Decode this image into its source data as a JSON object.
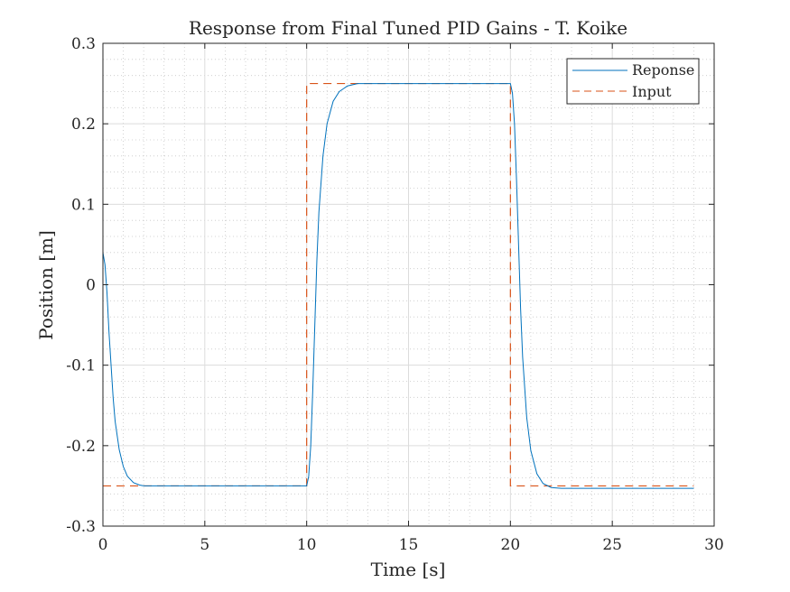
{
  "chart_data": {
    "type": "line",
    "title": "Response from Final Tuned PID Gains - T. Koike",
    "xlabel": "Time [s]",
    "ylabel": "Position [m]",
    "xlim": [
      0,
      30
    ],
    "ylim": [
      -0.3,
      0.3
    ],
    "xticks": [
      0,
      5,
      10,
      15,
      20,
      25,
      30
    ],
    "yticks": [
      -0.3,
      -0.2,
      -0.1,
      0,
      0.1,
      0.2,
      0.3
    ],
    "xtick_labels": [
      "0",
      "5",
      "10",
      "15",
      "20",
      "25",
      "30"
    ],
    "ytick_labels": [
      "-0.3",
      "-0.2",
      "-0.1",
      "0",
      "0.1",
      "0.2",
      "0.3"
    ],
    "grid": true,
    "minor_grid": true,
    "legend_position": "top-right",
    "series": [
      {
        "name": "Reponse",
        "color": "#0072BD",
        "style": "solid",
        "x": [
          0,
          0.1,
          0.2,
          0.3,
          0.4,
          0.5,
          0.6,
          0.8,
          1.0,
          1.2,
          1.5,
          1.8,
          2.0,
          3,
          5,
          8,
          10,
          10.1,
          10.2,
          10.3,
          10.4,
          10.5,
          10.6,
          10.8,
          11.0,
          11.3,
          11.6,
          12.0,
          12.5,
          13,
          15,
          18,
          20,
          20.1,
          20.2,
          20.3,
          20.4,
          20.5,
          20.6,
          20.8,
          21.0,
          21.3,
          21.6,
          22.0,
          22.5,
          24,
          27,
          29
        ],
        "y": [
          0.04,
          0.025,
          -0.01,
          -0.06,
          -0.1,
          -0.14,
          -0.17,
          -0.205,
          -0.226,
          -0.238,
          -0.246,
          -0.249,
          -0.25,
          -0.25,
          -0.25,
          -0.25,
          -0.25,
          -0.238,
          -0.2,
          -0.13,
          -0.05,
          0.03,
          0.09,
          0.16,
          0.2,
          0.228,
          0.24,
          0.247,
          0.25,
          0.25,
          0.25,
          0.25,
          0.25,
          0.238,
          0.2,
          0.13,
          0.05,
          -0.03,
          -0.09,
          -0.165,
          -0.206,
          -0.235,
          -0.247,
          -0.252,
          -0.253,
          -0.253,
          -0.253,
          -0.253
        ]
      },
      {
        "name": "Input",
        "color": "#D95319",
        "style": "dashed",
        "x": [
          0,
          10,
          10,
          20,
          20,
          29
        ],
        "y": [
          -0.25,
          -0.25,
          0.25,
          0.25,
          -0.25,
          -0.25
        ]
      }
    ]
  }
}
